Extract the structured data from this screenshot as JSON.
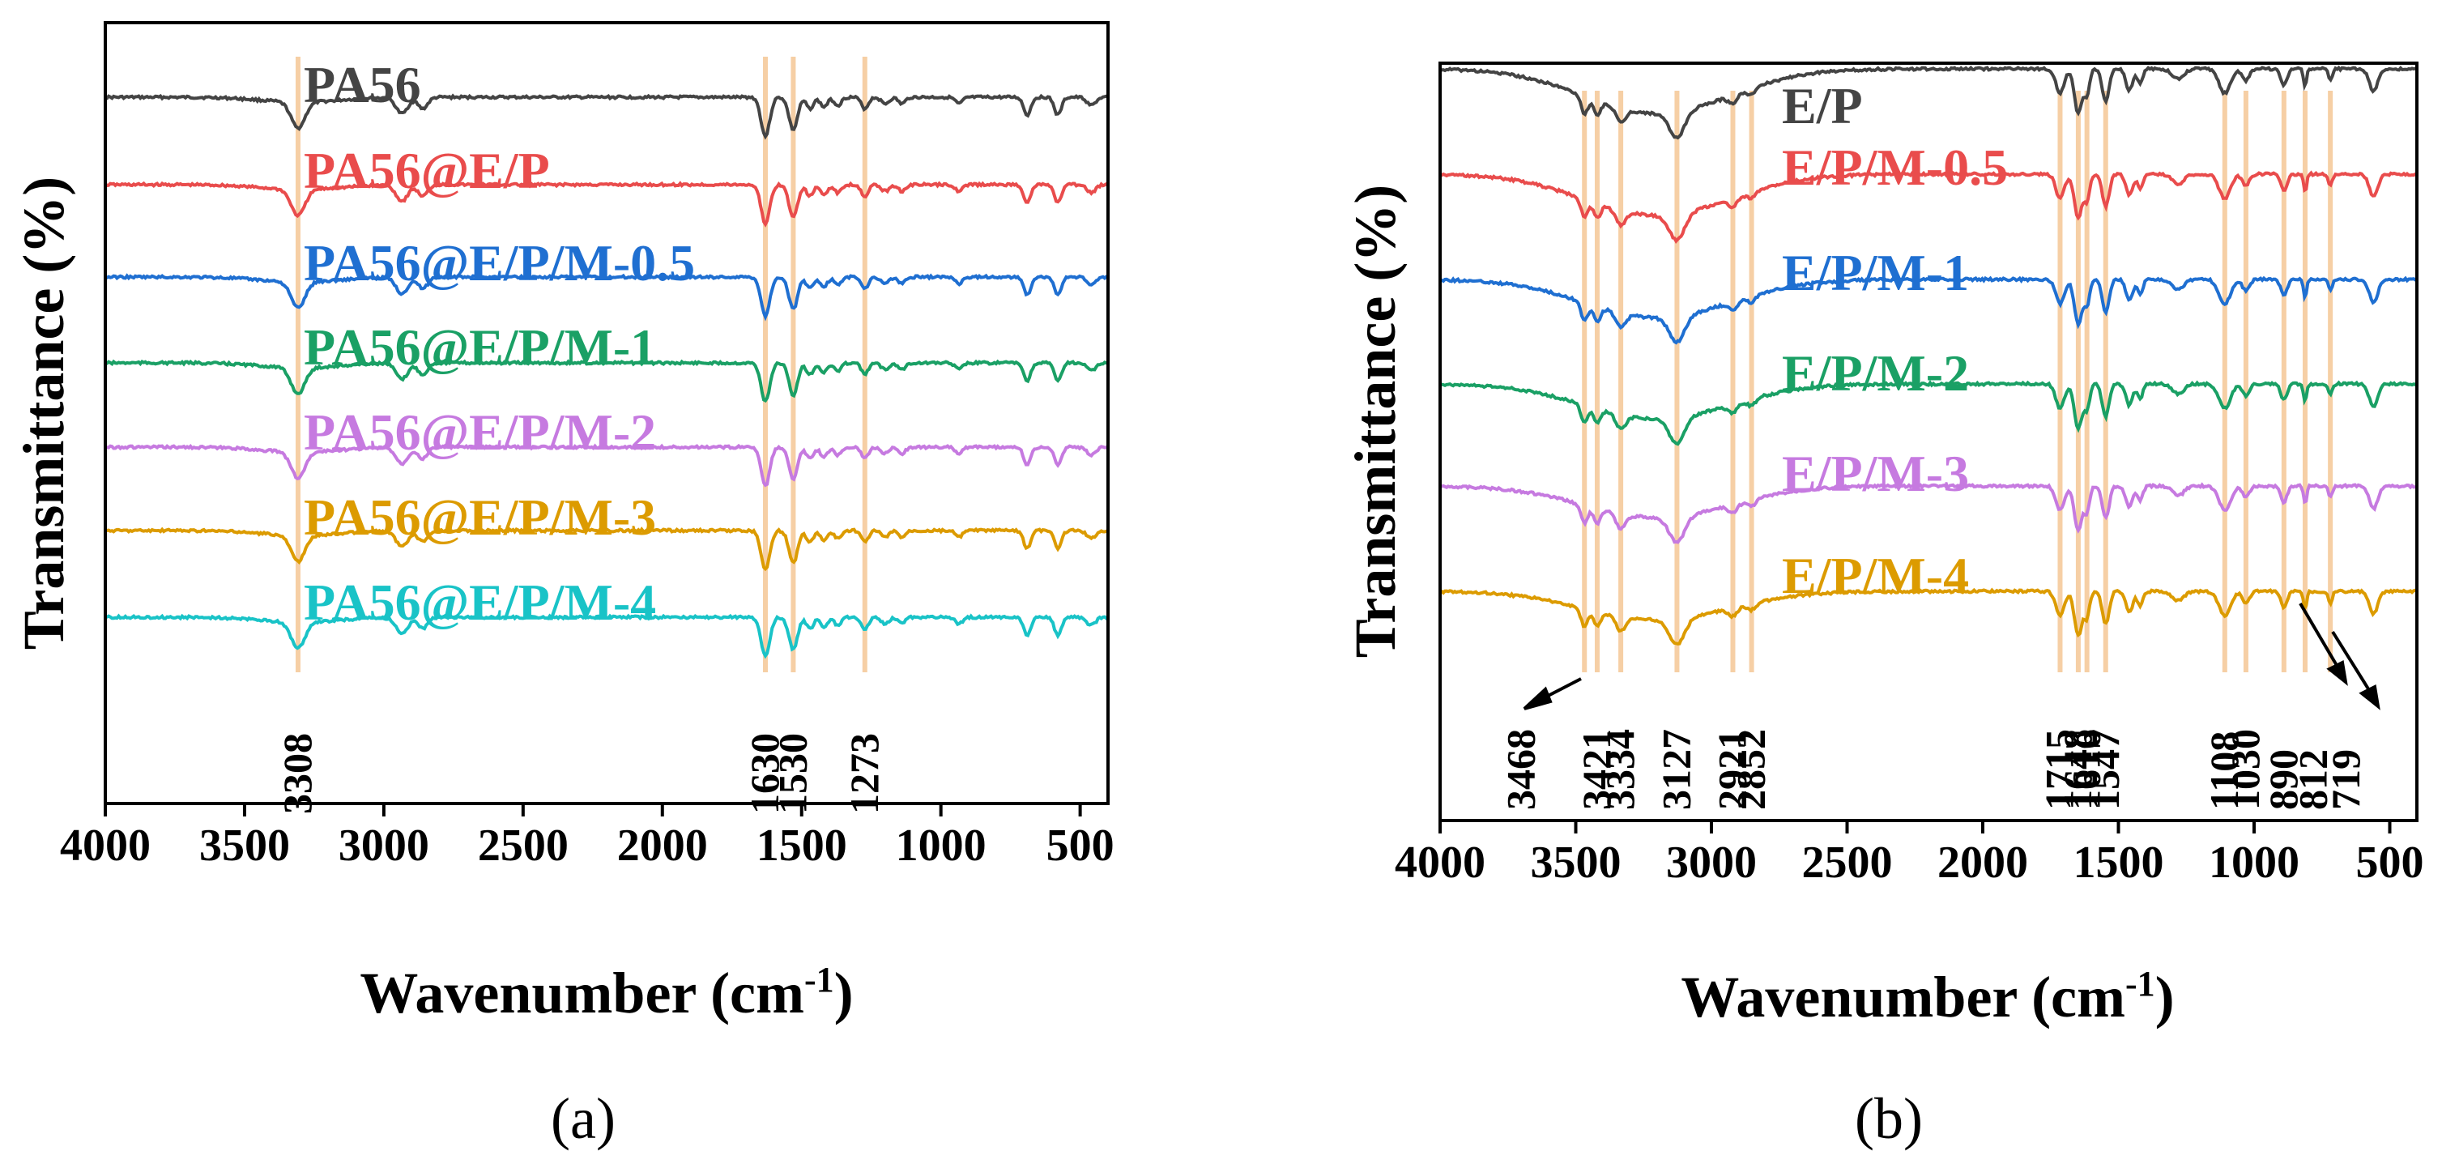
{
  "colors": {
    "black_trace": "#444444",
    "red_trace": "#e94c4c",
    "blue_trace": "#1f6fd1",
    "green_trace": "#1aa065",
    "purple_trace": "#c67ae0",
    "orange_trace": "#dc9b00",
    "cyan_trace": "#19c3c7",
    "marker_line": "#f6cfa5"
  },
  "chart_data": [
    {
      "type": "line",
      "panel_label": "(a)",
      "xlabel_main": "Wavenumber (cm",
      "xlabel_sup": "-1",
      "xlabel_close": ")",
      "ylabel": "Transmittance (%)",
      "xlim": [
        4000,
        400
      ],
      "x_reversed": true,
      "x_ticks": [
        "4000",
        "3500",
        "3000",
        "2500",
        "2000",
        "1500",
        "1000",
        "500"
      ],
      "x_tick_values": [
        4000,
        3500,
        3000,
        2500,
        2000,
        1500,
        1000,
        500
      ],
      "y_ticks_shown": false,
      "series": [
        {
          "name": "PA56",
          "color": "#444444"
        },
        {
          "name": "PA56@E/P",
          "color": "#e94c4c"
        },
        {
          "name": "PA56@E/P/M-0.5",
          "color": "#1f6fd1"
        },
        {
          "name": "PA56@E/P/M-1",
          "color": "#1aa065"
        },
        {
          "name": "PA56@E/P/M-2",
          "color": "#c67ae0"
        },
        {
          "name": "PA56@E/P/M-3",
          "color": "#dc9b00"
        },
        {
          "name": "PA56@E/P/M-4",
          "color": "#19c3c7"
        }
      ],
      "peak_lines": [
        3308,
        1630,
        1530,
        1273
      ],
      "peak_labels": [
        "3308",
        "1630",
        "1530",
        "1273"
      ]
    },
    {
      "type": "line",
      "panel_label": "(b)",
      "xlabel_main": "Wavenumber (cm",
      "xlabel_sup": "-1",
      "xlabel_close": ")",
      "ylabel": "Transmittance (%)",
      "xlim": [
        4000,
        400
      ],
      "x_reversed": true,
      "x_ticks": [
        "4000",
        "3500",
        "3000",
        "2500",
        "2000",
        "1500",
        "1000",
        "500"
      ],
      "x_tick_values": [
        4000,
        3500,
        3000,
        2500,
        2000,
        1500,
        1000,
        500
      ],
      "y_ticks_shown": false,
      "series": [
        {
          "name": "E/P",
          "color": "#444444"
        },
        {
          "name": "E/P/M-0.5",
          "color": "#e94c4c"
        },
        {
          "name": "E/P/M-1",
          "color": "#1f6fd1"
        },
        {
          "name": "E/P/M-2",
          "color": "#1aa065"
        },
        {
          "name": "E/P/M-3",
          "color": "#c67ae0"
        },
        {
          "name": "E/P/M-4",
          "color": "#dc9b00"
        }
      ],
      "peak_lines": [
        3468,
        3421,
        3334,
        3127,
        2921,
        2852,
        1715,
        1648,
        1616,
        1547,
        1108,
        1030,
        890,
        812,
        719
      ],
      "peak_labels": [
        "3468",
        "3421",
        "3334",
        "3127",
        "2921",
        "2852",
        "1715",
        "1648",
        "1616",
        "1547",
        "1108",
        "1030",
        "890",
        "812",
        "719"
      ]
    }
  ]
}
